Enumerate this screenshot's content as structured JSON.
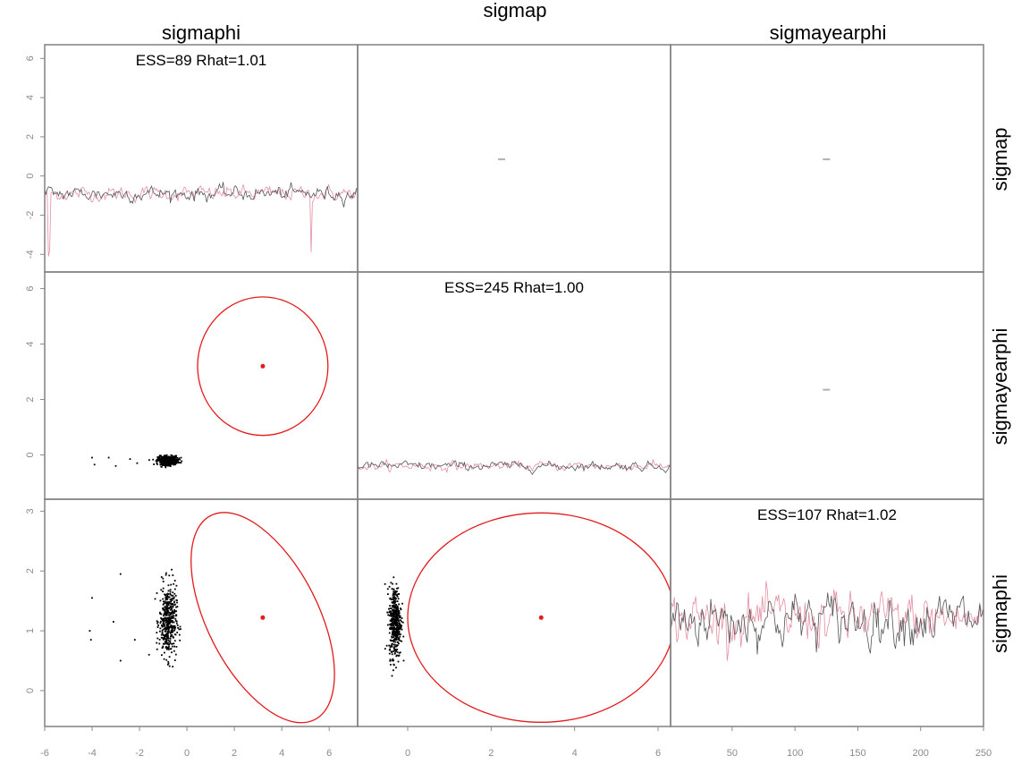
{
  "chart_data": {
    "type": "pairs",
    "title": "",
    "top_labels": [
      "sigmaphi",
      "sigmap",
      "sigmayearphi"
    ],
    "right_labels": [
      "sigmap",
      "sigmayearphi",
      "sigmaphi"
    ],
    "colors": {
      "chain1": "#555555",
      "chain2": "#e58fa3",
      "ellipse": "#e41a1c",
      "points": "#000000",
      "frame": "#808080",
      "ticks": "#8a8a8a"
    },
    "diagonal": [
      {
        "variable": "sigmaphi",
        "label": "ESS=89 Rhat=1.01",
        "trace_mean": -0.9,
        "trace_sd": 0.35,
        "trace_dips": [
          -4.1,
          -3.9
        ]
      },
      {
        "variable": "sigmap",
        "label": "ESS=245 Rhat=1.00",
        "trace_mean": -0.4,
        "trace_sd": 0.15
      },
      {
        "variable": "sigmayearphi",
        "label": "ESS=107 Rhat=1.02",
        "trace_mean": 1.2,
        "trace_sd": 0.4
      }
    ],
    "axes": {
      "row_y_ticks": [
        [
          "6",
          "4",
          "2",
          "0",
          "-2",
          "-4"
        ],
        [
          "6",
          "4",
          "2",
          "0"
        ],
        [
          "3",
          "2",
          "1",
          "0"
        ]
      ],
      "row_y_values": [
        [
          6,
          4,
          2,
          0,
          -2,
          -4
        ],
        [
          6,
          4,
          2,
          0
        ],
        [
          3,
          2,
          1,
          0
        ]
      ],
      "row_ylim": [
        [
          -4.9,
          6.7
        ],
        [
          -1.6,
          6.6
        ],
        [
          -0.6,
          3.2
        ]
      ],
      "col_x_ticks": [
        [
          "-6",
          "-4",
          "-2",
          "0",
          "2",
          "4",
          "6"
        ],
        [
          "0",
          "2",
          "4",
          "6"
        ],
        [
          "50",
          "100",
          "150",
          "200",
          "250"
        ]
      ],
      "col_x_values": [
        [
          -6,
          -4,
          -2,
          0,
          2,
          4,
          6
        ],
        [
          0,
          2,
          4,
          6
        ],
        [
          50,
          100,
          150,
          200,
          250
        ]
      ],
      "col_xlim": [
        [
          -6,
          7.2
        ],
        [
          -1.2,
          6.3
        ],
        [
          1,
          250
        ]
      ]
    },
    "scatter": [
      {
        "row": 1,
        "col": 0,
        "x_center": -0.8,
        "y_center": -0.2,
        "x_spread": 0.35,
        "y_spread": 0.08
      },
      {
        "row": 2,
        "col": 0,
        "x_center": -0.8,
        "y_center": 1.15,
        "x_spread": 0.3,
        "y_spread": 0.3
      },
      {
        "row": 2,
        "col": 1,
        "x_center": -0.3,
        "y_center": 1.15,
        "x_spread": 0.12,
        "y_spread": 0.3
      }
    ],
    "outliers": [
      {
        "row": 1,
        "col": 0,
        "points": [
          [
            -4.0,
            -0.1
          ],
          [
            -3.9,
            -0.35
          ],
          [
            -3.3,
            -0.1
          ],
          [
            -3.0,
            -0.4
          ],
          [
            -2.4,
            -0.15
          ],
          [
            -2.1,
            -0.3
          ]
        ]
      },
      {
        "row": 2,
        "col": 0,
        "points": [
          [
            -4.0,
            1.55
          ],
          [
            -4.1,
            1.0
          ],
          [
            -4.05,
            0.85
          ],
          [
            -3.1,
            1.15
          ],
          [
            -2.8,
            0.5
          ],
          [
            -2.8,
            1.95
          ],
          [
            -2.2,
            0.85
          ],
          [
            -1.6,
            0.6
          ]
        ]
      }
    ],
    "ellipses": [
      {
        "row": 1,
        "col": 0,
        "cx": 3.2,
        "cy": 3.2,
        "rx": 2.75,
        "ry": 2.5,
        "angle": 0
      },
      {
        "row": 2,
        "col": 0,
        "cx": 3.2,
        "cy": 1.22,
        "rx": 2.85,
        "ry": 0.82,
        "angle": -60
      },
      {
        "row": 2,
        "col": 1,
        "cx": 3.2,
        "cy": 1.22,
        "rx": 3.2,
        "ry": 1.75,
        "angle": 0
      }
    ],
    "upper_marks": [
      {
        "row": 0,
        "col": 1,
        "x": 2.25,
        "y": 0.85
      },
      {
        "row": 0,
        "col": 2,
        "x": 125,
        "y": 0.85
      },
      {
        "row": 1,
        "col": 2,
        "x": 125,
        "y": 2.35
      }
    ]
  }
}
